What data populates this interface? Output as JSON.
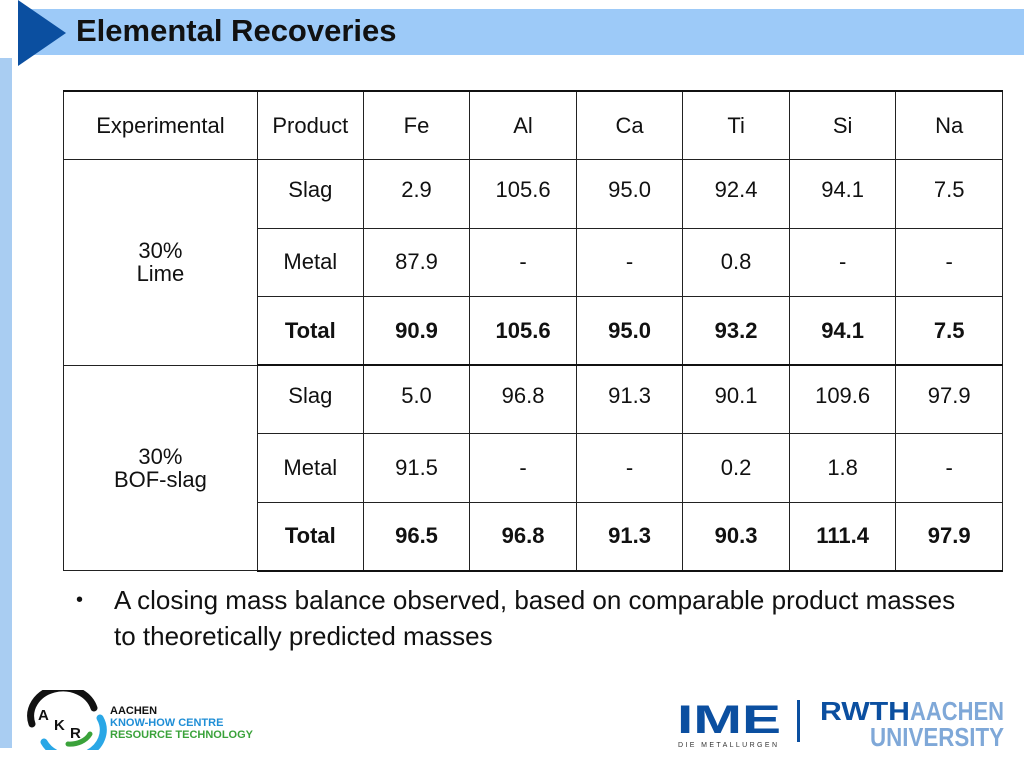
{
  "header": {
    "title": "Elemental Recoveries",
    "band_color": "#9dcaf8",
    "arrow_color": "#0b4fa0"
  },
  "table": {
    "headers": [
      "Experimental",
      "Product",
      "Fe",
      "Al",
      "Ca",
      "Ti",
      "Si",
      "Na"
    ],
    "groups": [
      {
        "experimental": [
          "30%",
          "Lime"
        ],
        "rows": [
          {
            "product": "Slag",
            "values": [
              "2.9",
              "105.6",
              "95.0",
              "92.4",
              "94.1",
              "7.5"
            ],
            "bold": false
          },
          {
            "product": "Metal",
            "values": [
              "87.9",
              "-",
              "-",
              "0.8",
              "-",
              "-"
            ],
            "bold": false
          },
          {
            "product": "Total",
            "values": [
              "90.9",
              "105.6",
              "95.0",
              "93.2",
              "94.1",
              "7.5"
            ],
            "bold": true
          }
        ]
      },
      {
        "experimental": [
          "30%",
          "BOF-slag"
        ],
        "rows": [
          {
            "product": "Slag",
            "values": [
              "5.0",
              "96.8",
              "91.3",
              "90.1",
              "109.6",
              "97.9"
            ],
            "bold": false
          },
          {
            "product": "Metal",
            "values": [
              "91.5",
              "-",
              "-",
              "0.2",
              "1.8",
              "-"
            ],
            "bold": false
          },
          {
            "product": "Total",
            "values": [
              "96.5",
              "96.8",
              "91.3",
              "90.3",
              "111.4",
              "97.9"
            ],
            "bold": true
          }
        ]
      }
    ]
  },
  "bullets": [
    {
      "marker": "•",
      "text": "A closing mass balance observed, based on comparable product masses to theoretically predicted masses"
    }
  ],
  "footer": {
    "akr": {
      "letters": [
        "A",
        "K",
        "R"
      ],
      "line1": "AACHEN",
      "line2": "KNOW-HOW CENTRE",
      "line3": "RESOURCE TECHNOLOGY"
    },
    "ime": {
      "mark": "IME",
      "tagline": "DIE METALLURGEN"
    },
    "rwth": {
      "line1a": "RWTH",
      "line1b": "AACHEN",
      "line2": "UNIVERSITY"
    }
  }
}
